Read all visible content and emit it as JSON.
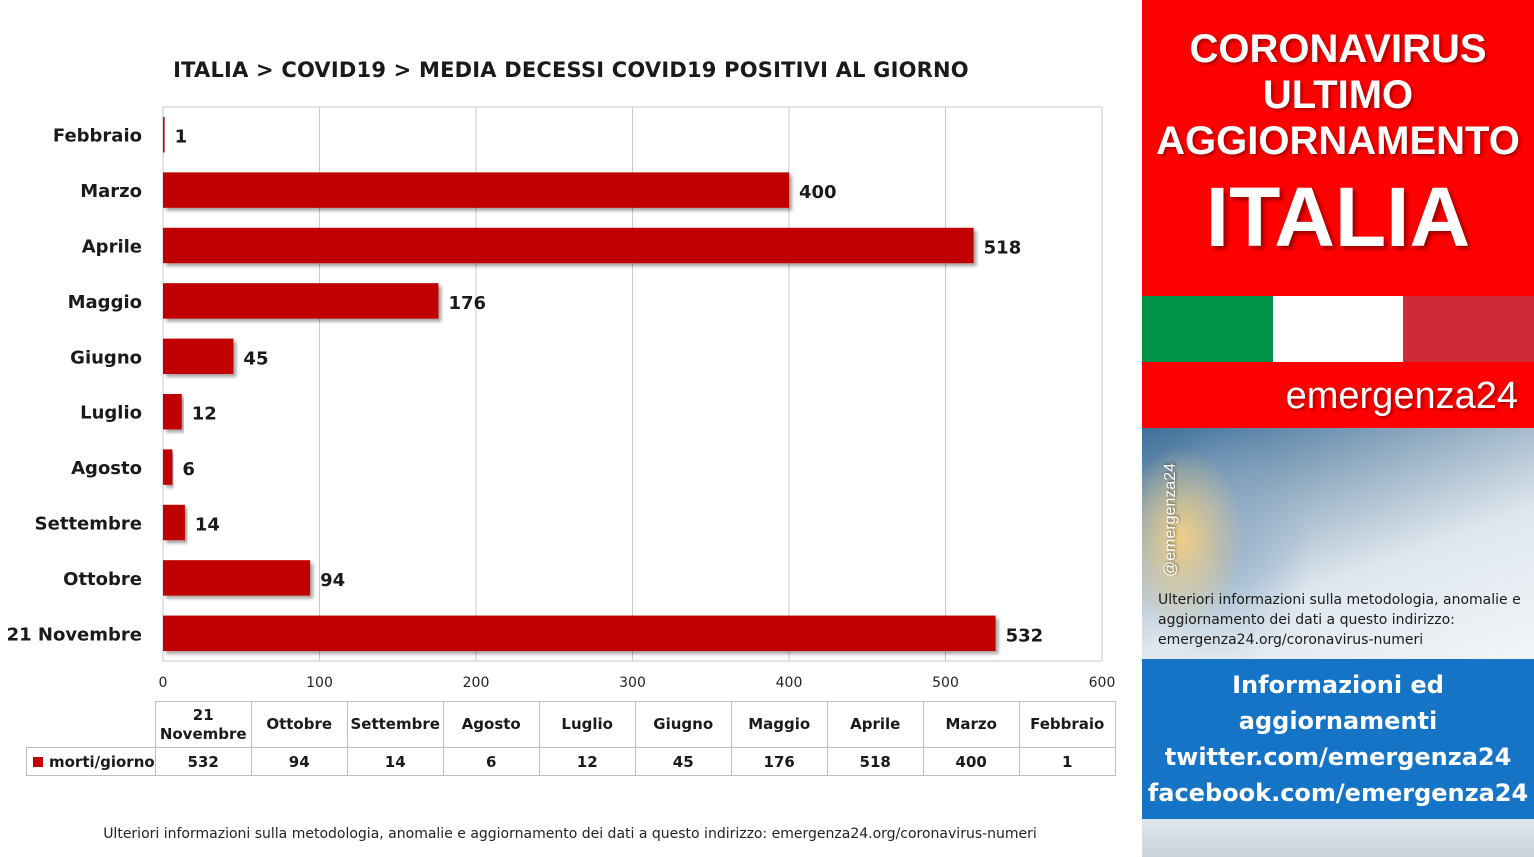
{
  "chart_data": {
    "type": "bar",
    "orientation": "horizontal",
    "title": "ITALIA >  COVID19 > MEDIA DECESSI COVID19 POSITIVI AL GIORNO",
    "categories": [
      "Febbraio",
      "Marzo",
      "Aprile",
      "Maggio",
      "Giugno",
      "Luglio",
      "Agosto",
      "Settembre",
      "Ottobre",
      "21 Novembre"
    ],
    "series": [
      {
        "name": "morti/giorno",
        "values": [
          1,
          400,
          518,
          176,
          45,
          12,
          6,
          14,
          94,
          532
        ],
        "color": "#c00000"
      }
    ],
    "xlim": [
      0,
      600
    ],
    "xticks": [
      0,
      100,
      200,
      300,
      400,
      500,
      600
    ],
    "grid": true,
    "legend": "data-table",
    "data_table": {
      "columns": [
        "21 Novembre",
        "Ottobre",
        "Settembre",
        "Agosto",
        "Luglio",
        "Giugno",
        "Maggio",
        "Aprile",
        "Marzo",
        "Febbraio"
      ],
      "row_label": "morti/giorno",
      "values": [
        532,
        94,
        14,
        6,
        12,
        45,
        176,
        518,
        400,
        1
      ]
    }
  },
  "footnote": "Ulteriori informazioni sulla metodologia, anomalie e aggiornamento dei dati a questo indirizzo: emergenza24.org/coronavirus-numeri",
  "panel": {
    "head_lines": [
      "CORONAVIRUS",
      "ULTIMO",
      "AGGIORNAMENTO"
    ],
    "country": "ITALIA",
    "flag_colors": [
      "#009246",
      "#ffffff",
      "#ce2b37"
    ],
    "brand": "emergenza24",
    "handle": "@emergenza24",
    "note": "Ulteriori informazioni sulla metodologia, anomalie e aggiornamento dei dati a questo indirizzo: emergenza24.org/coronavirus-numeri",
    "info_lines": [
      "Informazioni ed",
      "aggiornamenti",
      "twitter.com/emergenza24",
      "facebook.com/emergenza24"
    ]
  }
}
